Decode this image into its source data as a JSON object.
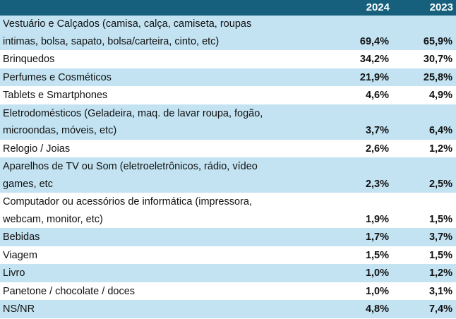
{
  "header": {
    "label": "",
    "year1": "2024",
    "year2": "2023"
  },
  "rows": [
    {
      "label_lines": [
        "Vestuário e Calçados (camisa, calça, camiseta, roupas",
        "intimas, bolsa, sapato, bolsa/carteira, cinto, etc)"
      ],
      "v2024": "69,4%",
      "v2023": "65,9%",
      "shade": true
    },
    {
      "label_lines": [
        "Brinquedos"
      ],
      "v2024": "34,2%",
      "v2023": "30,7%",
      "shade": false
    },
    {
      "label_lines": [
        "Perfumes e Cosméticos"
      ],
      "v2024": "21,9%",
      "v2023": "25,8%",
      "shade": true
    },
    {
      "label_lines": [
        "Tablets e Smartphones"
      ],
      "v2024": "4,6%",
      "v2023": "4,9%",
      "shade": false
    },
    {
      "label_lines": [
        "Eletrodomésticos (Geladeira, maq. de lavar roupa, fogão,",
        "microondas, móveis, etc)"
      ],
      "v2024": "3,7%",
      "v2023": "6,4%",
      "shade": true
    },
    {
      "label_lines": [
        "Relogio / Joias"
      ],
      "v2024": "2,6%",
      "v2023": "1,2%",
      "shade": false
    },
    {
      "label_lines": [
        "Aparelhos de TV ou Som (eletroeletrônicos, rádio, vídeo",
        "games, etc"
      ],
      "v2024": "2,3%",
      "v2023": "2,5%",
      "shade": true
    },
    {
      "label_lines": [
        "Computador ou acessórios de informática (impressora,",
        "webcam, monitor, etc)"
      ],
      "v2024": "1,9%",
      "v2023": "1,5%",
      "shade": false
    },
    {
      "label_lines": [
        "Bebidas"
      ],
      "v2024": "1,7%",
      "v2023": "3,7%",
      "shade": true
    },
    {
      "label_lines": [
        "Viagem"
      ],
      "v2024": "1,5%",
      "v2023": "1,5%",
      "shade": false
    },
    {
      "label_lines": [
        "Livro"
      ],
      "v2024": "1,0%",
      "v2023": "1,2%",
      "shade": true
    },
    {
      "label_lines": [
        "Panetone / chocolate / doces"
      ],
      "v2024": "1,0%",
      "v2023": "3,1%",
      "shade": false
    },
    {
      "label_lines": [
        "NS/NR"
      ],
      "v2024": "4,8%",
      "v2023": "7,4%",
      "shade": true
    }
  ],
  "colors": {
    "header_bg": "#17607d",
    "header_text": "#ffffff",
    "row_shade": "#c3e3f2",
    "row_plain": "#ffffff"
  }
}
